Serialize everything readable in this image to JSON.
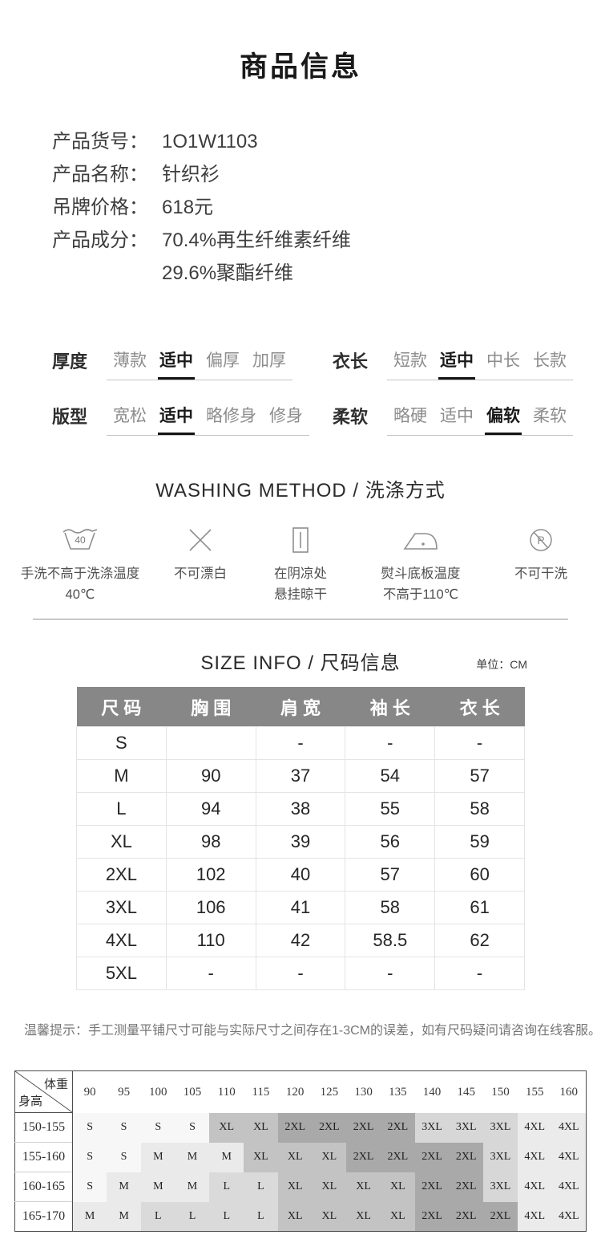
{
  "page": {
    "title": "商品信息"
  },
  "product_info": {
    "rows": [
      {
        "label": "产品货号：",
        "value": "1O1W1103"
      },
      {
        "label": "产品名称：",
        "value": "针织衫"
      },
      {
        "label": "吊牌价格：",
        "value": "618元"
      },
      {
        "label": "产品成分：",
        "value": "70.4%再生纤维素纤维"
      },
      {
        "label": "",
        "value": "29.6%聚酯纤维"
      }
    ]
  },
  "attributes": [
    {
      "label": "厚度",
      "options": [
        "薄款",
        "适中",
        "偏厚",
        "加厚"
      ],
      "selected": 1
    },
    {
      "label": "衣长",
      "options": [
        "短款",
        "适中",
        "中长",
        "长款"
      ],
      "selected": 1
    },
    {
      "label": "版型",
      "options": [
        "宽松",
        "适中",
        "略修身",
        "修身"
      ],
      "selected": 1
    },
    {
      "label": "柔软",
      "options": [
        "略硬",
        "适中",
        "偏软",
        "柔软"
      ],
      "selected": 2
    }
  ],
  "washing": {
    "title": "WASHING METHOD / 洗涤方式",
    "items": [
      {
        "icon": "handwash-icon",
        "temp": "40",
        "label": "手洗不高于洗涤温度\n40℃"
      },
      {
        "icon": "no-bleach-icon",
        "label": "不可漂白"
      },
      {
        "icon": "hang-dry-icon",
        "label": "在阴凉处\n悬挂晾干"
      },
      {
        "icon": "iron-icon",
        "label": "熨斗底板温度\n不高于110℃"
      },
      {
        "icon": "no-dryclean-icon",
        "label": "不可干洗"
      }
    ]
  },
  "size_info": {
    "title": "SIZE INFO / 尺码信息",
    "unit": "单位：CM",
    "headers": [
      "尺码",
      "胸围",
      "肩宽",
      "袖长",
      "衣长"
    ],
    "rows": [
      [
        "S",
        "",
        "-",
        "-",
        "-"
      ],
      [
        "M",
        "90",
        "37",
        "54",
        "57"
      ],
      [
        "L",
        "94",
        "38",
        "55",
        "58"
      ],
      [
        "XL",
        "98",
        "39",
        "56",
        "59"
      ],
      [
        "2XL",
        "102",
        "40",
        "57",
        "60"
      ],
      [
        "3XL",
        "106",
        "41",
        "58",
        "61"
      ],
      [
        "4XL",
        "110",
        "42",
        "58.5",
        "62"
      ],
      [
        "5XL",
        "-",
        "-",
        "-",
        "-"
      ]
    ]
  },
  "tip": "温馨提示：手工测量平铺尺寸可能与实际尺寸之间存在1-3CM的误差，如有尺码疑问请咨询在线客服。",
  "size_chart": {
    "corner": {
      "top": "体重",
      "bottom": "身高"
    },
    "weights": [
      "90",
      "95",
      "100",
      "105",
      "110",
      "115",
      "120",
      "125",
      "130",
      "135",
      "140",
      "145",
      "150",
      "155",
      "160"
    ],
    "rows": [
      {
        "height": "150-155",
        "sizes": [
          "S",
          "S",
          "S",
          "S",
          "XL",
          "XL",
          "2XL",
          "2XL",
          "2XL",
          "2XL",
          "3XL",
          "3XL",
          "3XL",
          "4XL",
          "4XL"
        ]
      },
      {
        "height": "155-160",
        "sizes": [
          "S",
          "S",
          "M",
          "M",
          "M",
          "XL",
          "XL",
          "XL",
          "2XL",
          "2XL",
          "2XL",
          "2XL",
          "3XL",
          "4XL",
          "4XL"
        ]
      },
      {
        "height": "160-165",
        "sizes": [
          "S",
          "M",
          "M",
          "M",
          "L",
          "L",
          "XL",
          "XL",
          "XL",
          "XL",
          "2XL",
          "2XL",
          "3XL",
          "4XL",
          "4XL"
        ]
      },
      {
        "height": "165-170",
        "sizes": [
          "M",
          "M",
          "L",
          "L",
          "L",
          "L",
          "XL",
          "XL",
          "XL",
          "XL",
          "2XL",
          "2XL",
          "2XL",
          "4XL",
          "4XL"
        ]
      }
    ],
    "shades": {
      "S": "#f7f7f7",
      "M": "#eaeaea",
      "L": "#dadada",
      "XL": "#c3c3c3",
      "2XL": "#a9a9a9",
      "3XL": "#d7d7d7",
      "4XL": "#ebebeb"
    }
  }
}
